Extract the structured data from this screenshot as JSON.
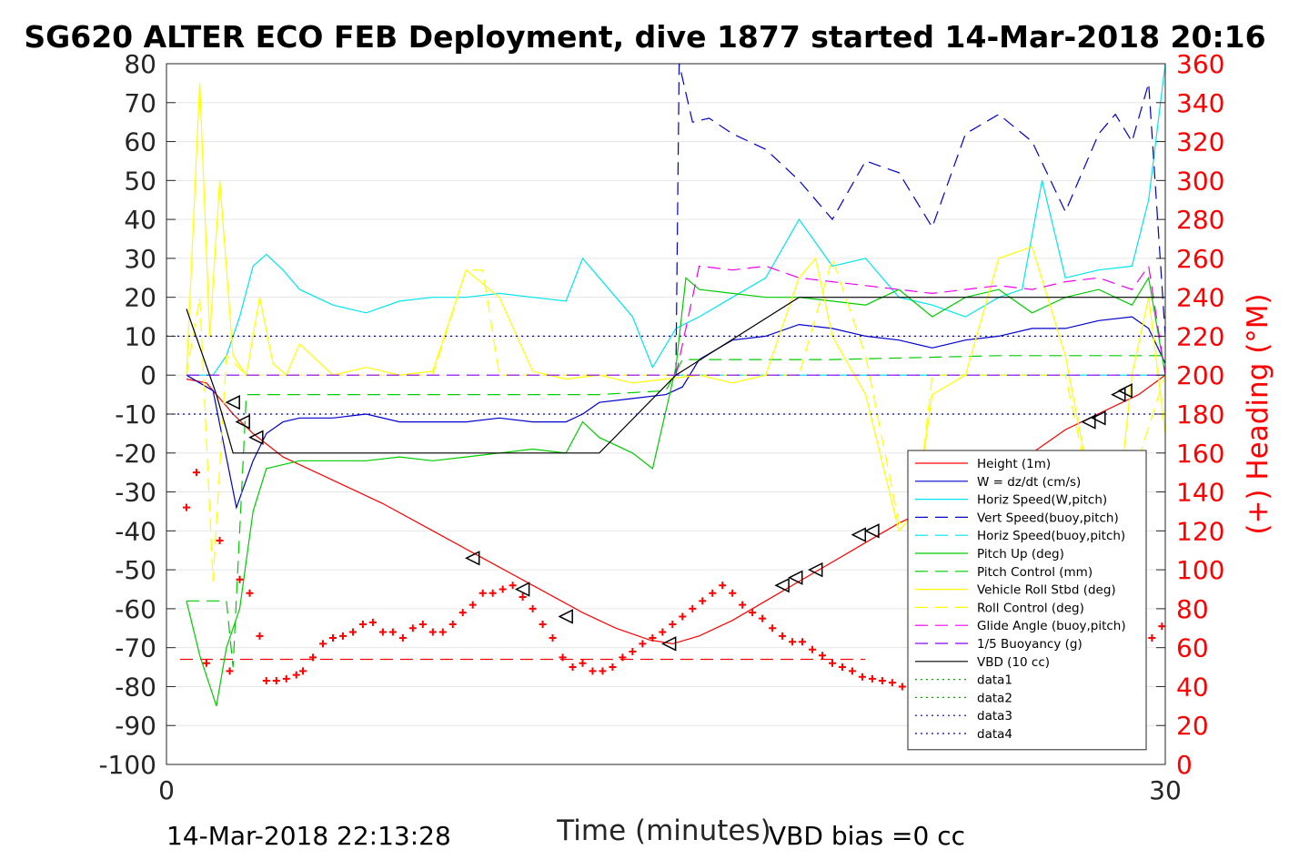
{
  "chart_data": {
    "type": "line",
    "title": "SG620 ALTER ECO FEB Deployment, dive 1877 started 14-Mar-2018 20:16",
    "xlabel": "Time (minutes)",
    "ylabel_right": "(+) Heading (°M)",
    "footer_left": "14-Mar-2018 22:13:28",
    "footer_right": "VBD bias =0 cc",
    "xlim": [
      0,
      30
    ],
    "ylim_left": [
      -100,
      80
    ],
    "ylim_right": [
      0,
      360
    ],
    "x_ticks": [
      "0",
      "30"
    ],
    "y_ticks_left": [
      "80",
      "70",
      "60",
      "50",
      "40",
      "30",
      "20",
      "10",
      "0",
      "-10",
      "-20",
      "-30",
      "-40",
      "-50",
      "-60",
      "-70",
      "-80",
      "-90",
      "-100"
    ],
    "y_ticks_right": [
      "360",
      "340",
      "320",
      "300",
      "280",
      "260",
      "240",
      "220",
      "200",
      "180",
      "160",
      "140",
      "120",
      "100",
      "80",
      "60",
      "40",
      "20",
      "0"
    ],
    "grid": true,
    "legend_position": "lower-right",
    "series": [
      {
        "name": "Height (1m)",
        "color": "#ff0000",
        "style": "solid",
        "x": [
          0.6,
          1.2,
          1.6,
          2.0,
          2.6,
          3.5,
          5.0,
          6.5,
          8.0,
          9.5,
          11.0,
          12.5,
          13.5,
          14.5,
          15.2,
          16.0,
          17.0,
          18.0,
          19.0,
          20.0,
          21.0,
          22.0,
          23.0,
          24.0,
          25.0,
          26.0,
          27.0,
          29.2,
          30.0
        ],
        "y": [
          -1,
          -2,
          -6,
          -10,
          -15,
          -21,
          -27,
          -33,
          -40,
          -47,
          -54,
          -61,
          -65,
          -68,
          -69,
          -67,
          -63,
          -58,
          -53,
          -48,
          -43,
          -38,
          -34,
          -30,
          -25,
          -20,
          -14,
          -5,
          0
        ]
      },
      {
        "name": "W = dz/dt (cm/s)",
        "color": "#0000cc",
        "style": "solid",
        "x": [
          0.6,
          1.0,
          1.4,
          2.1,
          2.6,
          3.0,
          3.5,
          4.0,
          5.0,
          6.0,
          7.0,
          8.0,
          9.0,
          10.0,
          11.0,
          12.0,
          12.5,
          13.0,
          14.0,
          15.0,
          15.5,
          16.0,
          17.0,
          18.0,
          19.0,
          20.0,
          21.0,
          22.0,
          23.0,
          24.0,
          25.0,
          26.0,
          27.0,
          28.0,
          29.0,
          29.5,
          30.0
        ],
        "y": [
          0,
          -2,
          -4,
          -34,
          -22,
          -15,
          -12,
          -11,
          -11,
          -10,
          -12,
          -12,
          -12,
          -11,
          -12,
          -12,
          -10,
          -7,
          -6,
          -5,
          -3,
          4,
          9,
          10,
          13,
          12,
          10,
          9,
          7,
          9,
          10,
          12,
          12,
          14,
          15,
          12,
          3
        ]
      },
      {
        "name": "Horiz Speed(W,pitch)",
        "color": "#00e5ee",
        "style": "solid",
        "x": [
          0.6,
          1.0,
          1.4,
          1.8,
          2.2,
          2.6,
          3.0,
          3.5,
          4.0,
          5.0,
          6.0,
          7.0,
          8.0,
          9.0,
          10.0,
          11.0,
          12.0,
          12.5,
          13.0,
          14.0,
          14.6,
          15.3,
          16.0,
          17.0,
          18.0,
          19.0,
          20.0,
          21.0,
          22.0,
          23.0,
          24.0,
          25.0,
          25.7,
          26.3,
          27.0,
          28.0,
          29.0,
          29.5,
          30.0
        ],
        "y": [
          0,
          0,
          0,
          5,
          15,
          28,
          31,
          27,
          22,
          18,
          16,
          19,
          20,
          20,
          21,
          20,
          19,
          30,
          25,
          15,
          2,
          12,
          15,
          20,
          25,
          40,
          28,
          30,
          20,
          18,
          15,
          20,
          22,
          50,
          25,
          27,
          28,
          45,
          80
        ]
      },
      {
        "name": "Vert Speed(buoy,pitch)",
        "color": "#0000cc",
        "style": "dashed",
        "x": [
          15.3,
          15.4,
          15.8,
          16.3,
          17.0,
          18.0,
          19.0,
          20.0,
          21.0,
          22.0,
          23.0,
          24.0,
          25.0,
          26.0,
          27.0,
          28.0,
          28.5,
          29.0,
          29.5,
          30.0
        ],
        "y": [
          0,
          80,
          65,
          66,
          62,
          58,
          50,
          40,
          55,
          52,
          38,
          62,
          67,
          60,
          42,
          62,
          67,
          60,
          75,
          10
        ]
      },
      {
        "name": "Horiz Speed(buoy,pitch)",
        "color": "#00e5ee",
        "style": "dashed",
        "x": [
          15.3,
          30.0
        ],
        "y": [
          0,
          0
        ]
      },
      {
        "name": "Pitch Up (deg)",
        "color": "#00cc00",
        "style": "solid",
        "x": [
          0.6,
          1.0,
          1.5,
          1.8,
          2.2,
          2.6,
          3.0,
          3.5,
          4.0,
          5.0,
          6.0,
          7.0,
          8.0,
          9.0,
          10.0,
          11.0,
          12.0,
          12.5,
          13.0,
          14.0,
          14.6,
          15.3,
          15.6,
          16.0,
          17.0,
          18.0,
          19.0,
          20.0,
          21.0,
          22.0,
          23.0,
          24.0,
          25.0,
          26.0,
          27.0,
          28.0,
          29.0,
          29.5,
          30.0
        ],
        "y": [
          -58,
          -72,
          -85,
          -70,
          -60,
          -35,
          -24,
          -23,
          -22,
          -22,
          -22,
          -21,
          -22,
          -21,
          -20,
          -19,
          -20,
          -12,
          -16,
          -20,
          -24,
          2,
          25,
          22,
          21,
          20,
          20,
          19,
          18,
          22,
          15,
          20,
          22,
          16,
          20,
          22,
          18,
          25,
          0
        ]
      },
      {
        "name": "Pitch Control (mm)",
        "color": "#00cc00",
        "style": "dashed",
        "x": [
          0.6,
          1.8,
          2.0,
          2.4,
          3.0,
          5.0,
          8.0,
          11.0,
          13.0,
          15.0,
          15.5,
          20.0,
          25.0,
          29.5,
          30.0
        ],
        "y": [
          -58,
          -58,
          -75,
          -5,
          -5,
          -5,
          -5,
          -5,
          -5,
          -4,
          4,
          4,
          5,
          5,
          5
        ]
      },
      {
        "name": "Vehicle Roll Stbd (deg)",
        "color": "#ffff00",
        "style": "solid",
        "x": [
          0.6,
          1.0,
          1.3,
          1.6,
          2.0,
          2.4,
          2.8,
          3.2,
          3.6,
          4.0,
          5.0,
          6.0,
          7.0,
          8.0,
          9.0,
          10.0,
          11.0,
          11.5,
          12.0,
          13.0,
          14.0,
          15.0,
          16.0,
          17.0,
          18.0,
          19.0,
          19.5,
          20.0,
          21.0,
          22.0,
          22.5,
          23.0,
          24.0,
          25.0,
          26.0,
          27.0,
          28.0,
          28.5,
          29.0,
          29.5,
          30.0
        ],
        "y": [
          0,
          75,
          10,
          50,
          5,
          0,
          20,
          3,
          0,
          8,
          0,
          2,
          0,
          1,
          27,
          20,
          1,
          0,
          -1,
          0,
          -2,
          -1,
          0,
          -2,
          0,
          25,
          30,
          10,
          -5,
          -40,
          -35,
          -5,
          0,
          30,
          33,
          5,
          -40,
          -40,
          0,
          20,
          -15
        ]
      },
      {
        "name": "Roll Control (deg)",
        "color": "#ffff00",
        "style": "dashed",
        "x": [
          0.6,
          1.0,
          1.4,
          1.8,
          2.4,
          3.0,
          5.0,
          8.0,
          9.0,
          9.5,
          10.0,
          11.0,
          15.0,
          19.0,
          20.0,
          21.0,
          22.0,
          22.5,
          23.0,
          25.0,
          26.0,
          27.0,
          28.0,
          28.5,
          30.0
        ],
        "y": [
          0,
          20,
          -53,
          5,
          0,
          0,
          0,
          0,
          27,
          27,
          0,
          0,
          0,
          0,
          30,
          5,
          -38,
          -38,
          0,
          0,
          0,
          0,
          -40,
          -40,
          0
        ]
      },
      {
        "name": "Glide Angle (buoy,pitch)",
        "color": "#ee00ee",
        "style": "dashed",
        "x": [
          15.3,
          16.0,
          17.0,
          18.0,
          19.0,
          20.0,
          21.0,
          22.0,
          23.0,
          24.0,
          25.0,
          26.0,
          27.0,
          28.0,
          29.0,
          29.5,
          30.0
        ],
        "y": [
          0,
          28,
          27,
          28,
          25,
          24,
          23,
          22,
          21,
          22,
          23,
          22,
          24,
          25,
          22,
          28,
          0
        ]
      },
      {
        "name": "1/5 Buoyancy (g)",
        "color": "#8800ff",
        "style": "dashed",
        "x": [
          0.6,
          15.3,
          30.0
        ],
        "y": [
          0,
          0,
          0
        ]
      },
      {
        "name": "VBD (10 cc)",
        "color": "#000000",
        "style": "solid",
        "x": [
          0.6,
          1.5,
          2.0,
          13.0,
          15.3,
          19.0,
          30.0
        ],
        "y": [
          17,
          -5,
          -20,
          -20,
          0,
          20,
          20
        ]
      },
      {
        "name": "data1",
        "color": "#00aa00",
        "style": "dotted",
        "x": [],
        "y": []
      },
      {
        "name": "data2",
        "color": "#00aa00",
        "style": "dotted",
        "x": [],
        "y": []
      },
      {
        "name": "data3",
        "color": "#0000aa",
        "style": "dotted",
        "x": [
          0,
          30
        ],
        "y": [
          10,
          10
        ]
      },
      {
        "name": "data4",
        "color": "#0000aa",
        "style": "dotted",
        "x": [
          0,
          30
        ],
        "y": [
          -10,
          -10
        ]
      }
    ],
    "reference_line_left": {
      "y": -73,
      "color": "#ff0000",
      "style": "dashed"
    },
    "heading_points": {
      "color": "#ff0000",
      "x": [
        0.6,
        0.9,
        1.2,
        1.6,
        1.9,
        2.2,
        2.5,
        2.8,
        3.0,
        3.3,
        3.6,
        3.9,
        4.1,
        4.4,
        4.7,
        5.0,
        5.3,
        5.6,
        5.9,
        6.2,
        6.5,
        6.8,
        7.1,
        7.4,
        7.7,
        8.0,
        8.3,
        8.6,
        8.9,
        9.2,
        9.5,
        9.8,
        10.1,
        10.4,
        10.7,
        11.0,
        11.3,
        11.6,
        11.9,
        12.2,
        12.5,
        12.8,
        13.1,
        13.4,
        13.7,
        14.0,
        14.3,
        14.6,
        14.9,
        15.2,
        15.5,
        15.8,
        16.1,
        16.4,
        16.7,
        17.0,
        17.3,
        17.6,
        17.9,
        18.2,
        18.5,
        18.8,
        19.1,
        19.4,
        19.7,
        20.0,
        20.3,
        20.6,
        20.9,
        21.2,
        21.5,
        21.8,
        22.1,
        22.4,
        22.7,
        23.0,
        23.3,
        23.6,
        23.9,
        24.2,
        24.5,
        24.8,
        25.1,
        25.4,
        25.7,
        26.0,
        26.3,
        26.6,
        26.9,
        27.2,
        27.5,
        27.8,
        28.1,
        28.4,
        28.7,
        29.0,
        29.3,
        29.6,
        29.9
      ],
      "y": [
        132,
        150,
        52,
        115,
        48,
        95,
        88,
        66,
        43,
        43,
        44,
        46,
        48,
        55,
        62,
        65,
        66,
        68,
        72,
        73,
        68,
        68,
        65,
        70,
        72,
        68,
        68,
        72,
        78,
        82,
        88,
        88,
        90,
        92,
        86,
        80,
        72,
        65,
        55,
        50,
        52,
        48,
        48,
        50,
        55,
        58,
        62,
        65,
        68,
        72,
        76,
        80,
        84,
        88,
        92,
        88,
        82,
        78,
        75,
        70,
        66,
        63,
        63,
        59,
        56,
        52,
        50,
        48,
        45,
        44,
        43,
        42,
        40,
        46,
        55,
        61,
        82,
        92,
        98,
        105,
        115,
        118,
        125,
        124,
        118,
        116,
        95,
        105,
        90,
        70,
        60,
        55,
        56,
        58,
        60,
        86,
        85,
        65,
        71
      ]
    },
    "triangle_markers": {
      "x": [
        2.0,
        2.3,
        2.7,
        9.2,
        10.7,
        12.0,
        15.1,
        18.5,
        18.9,
        19.5,
        20.8,
        21.2,
        22.8,
        23.2,
        25.1,
        25.5,
        26.5,
        26.8,
        27.7,
        28.0,
        28.6,
        28.8
      ],
      "y": [
        -7,
        -12,
        -16,
        -47,
        -55,
        -62,
        -69,
        -54,
        -52,
        -50,
        -41,
        -40,
        -37,
        -37,
        -30,
        -29,
        -23,
        -22,
        -12,
        -11,
        -5,
        -4
      ]
    }
  }
}
